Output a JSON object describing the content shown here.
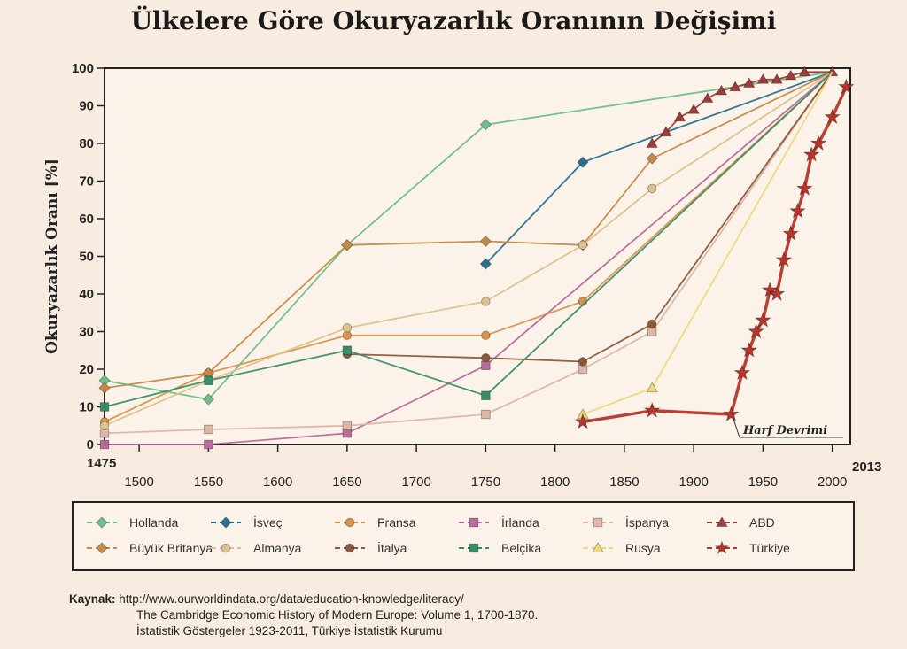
{
  "chart_data": {
    "type": "line",
    "title": "Ülkelere Göre Okuryazarlık Oranının Değişimi",
    "ylabel": "Okuryazarlık Oranı [%]",
    "xlabel": "",
    "xlim": [
      1475,
      2013
    ],
    "ylim": [
      0,
      100
    ],
    "x_ticks": [
      1500,
      1550,
      1600,
      1650,
      1700,
      1750,
      1800,
      1850,
      1900,
      1950,
      2000
    ],
    "x_start_label": "1475",
    "x_end_label": "2013",
    "y_ticks": [
      0,
      10,
      20,
      30,
      40,
      50,
      60,
      70,
      80,
      90,
      100
    ],
    "annotation": {
      "text": "Harf Devrimi",
      "x": 1928,
      "y": 8
    },
    "legend_position": "bottom",
    "series": [
      {
        "name": "Hollanda",
        "color": "#6fbe8b",
        "marker": "diamond",
        "points": [
          [
            1475,
            17
          ],
          [
            1550,
            12
          ],
          [
            1650,
            53
          ],
          [
            1750,
            85
          ],
          [
            2000,
            99
          ]
        ]
      },
      {
        "name": "İsveç",
        "color": "#2a6f8f",
        "marker": "diamond",
        "points": [
          [
            1750,
            48
          ],
          [
            1820,
            75
          ],
          [
            2000,
            99
          ]
        ]
      },
      {
        "name": "Fransa",
        "color": "#d8924a",
        "marker": "circle",
        "points": [
          [
            1475,
            6
          ],
          [
            1550,
            19
          ],
          [
            1650,
            29
          ],
          [
            1750,
            29
          ],
          [
            1820,
            38
          ],
          [
            2000,
            99
          ]
        ]
      },
      {
        "name": "İrlanda",
        "color": "#b86a9a",
        "marker": "square",
        "points": [
          [
            1475,
            0
          ],
          [
            1550,
            0
          ],
          [
            1650,
            3
          ],
          [
            1750,
            21
          ],
          [
            2000,
            99
          ]
        ]
      },
      {
        "name": "İspanya",
        "color": "#dcb6a7",
        "marker": "square",
        "points": [
          [
            1475,
            3
          ],
          [
            1550,
            4
          ],
          [
            1650,
            5
          ],
          [
            1750,
            8
          ],
          [
            1820,
            20
          ],
          [
            1870,
            30
          ],
          [
            2000,
            99
          ]
        ]
      },
      {
        "name": "ABD",
        "color": "#9e3b3b",
        "marker": "triangle",
        "points": [
          [
            1870,
            80
          ],
          [
            1880,
            83
          ],
          [
            1890,
            87
          ],
          [
            1900,
            89
          ],
          [
            1910,
            92
          ],
          [
            1920,
            94
          ],
          [
            1930,
            95
          ],
          [
            1940,
            96
          ],
          [
            1950,
            97
          ],
          [
            1960,
            97
          ],
          [
            1970,
            98
          ],
          [
            1980,
            99
          ],
          [
            2000,
            99
          ]
        ]
      },
      {
        "name": "Büyük Britanya",
        "color": "#c58a48",
        "marker": "diamond",
        "points": [
          [
            1475,
            15
          ],
          [
            1550,
            19
          ],
          [
            1650,
            53
          ],
          [
            1750,
            54
          ],
          [
            1820,
            53
          ],
          [
            1870,
            76
          ],
          [
            2000,
            99
          ]
        ]
      },
      {
        "name": "Almanya",
        "color": "#dcc18c",
        "marker": "circle",
        "points": [
          [
            1475,
            5
          ],
          [
            1550,
            17
          ],
          [
            1650,
            31
          ],
          [
            1750,
            38
          ],
          [
            1820,
            53
          ],
          [
            1870,
            68
          ],
          [
            2000,
            99
          ]
        ]
      },
      {
        "name": "İtalya",
        "color": "#8a5a3a",
        "marker": "circle",
        "points": [
          [
            1650,
            24
          ],
          [
            1750,
            23
          ],
          [
            1820,
            22
          ],
          [
            1870,
            32
          ],
          [
            2000,
            99
          ]
        ]
      },
      {
        "name": "Belçika",
        "color": "#3b8d69",
        "marker": "square",
        "points": [
          [
            1475,
            10
          ],
          [
            1550,
            17
          ],
          [
            1650,
            25
          ],
          [
            1750,
            13
          ],
          [
            2000,
            99
          ]
        ]
      },
      {
        "name": "Rusya",
        "color": "#efd77a",
        "marker": "triangle",
        "points": [
          [
            1820,
            8
          ],
          [
            1870,
            15
          ],
          [
            2000,
            99
          ]
        ]
      },
      {
        "name": "Türkiye",
        "color": "#b5362b",
        "marker": "star",
        "points": [
          [
            1820,
            6
          ],
          [
            1870,
            9
          ],
          [
            1927,
            8
          ],
          [
            1935,
            19
          ],
          [
            1940,
            25
          ],
          [
            1945,
            30
          ],
          [
            1950,
            33
          ],
          [
            1955,
            41
          ],
          [
            1960,
            40
          ],
          [
            1965,
            49
          ],
          [
            1970,
            56
          ],
          [
            1975,
            62
          ],
          [
            1980,
            68
          ],
          [
            1985,
            77
          ],
          [
            1990,
            80
          ],
          [
            2000,
            87
          ],
          [
            2010,
            95
          ]
        ]
      }
    ]
  },
  "source": {
    "label": "Kaynak:",
    "lines": [
      "http://www.ourworldindata.org/data/education-knowledge/literacy/",
      "The Cambridge Economic History of Modern Europe: Volume 1, 1700-1870.",
      "İstatistik Göstergeler 1923-2011, Türkiye İstatistik Kurumu"
    ]
  }
}
